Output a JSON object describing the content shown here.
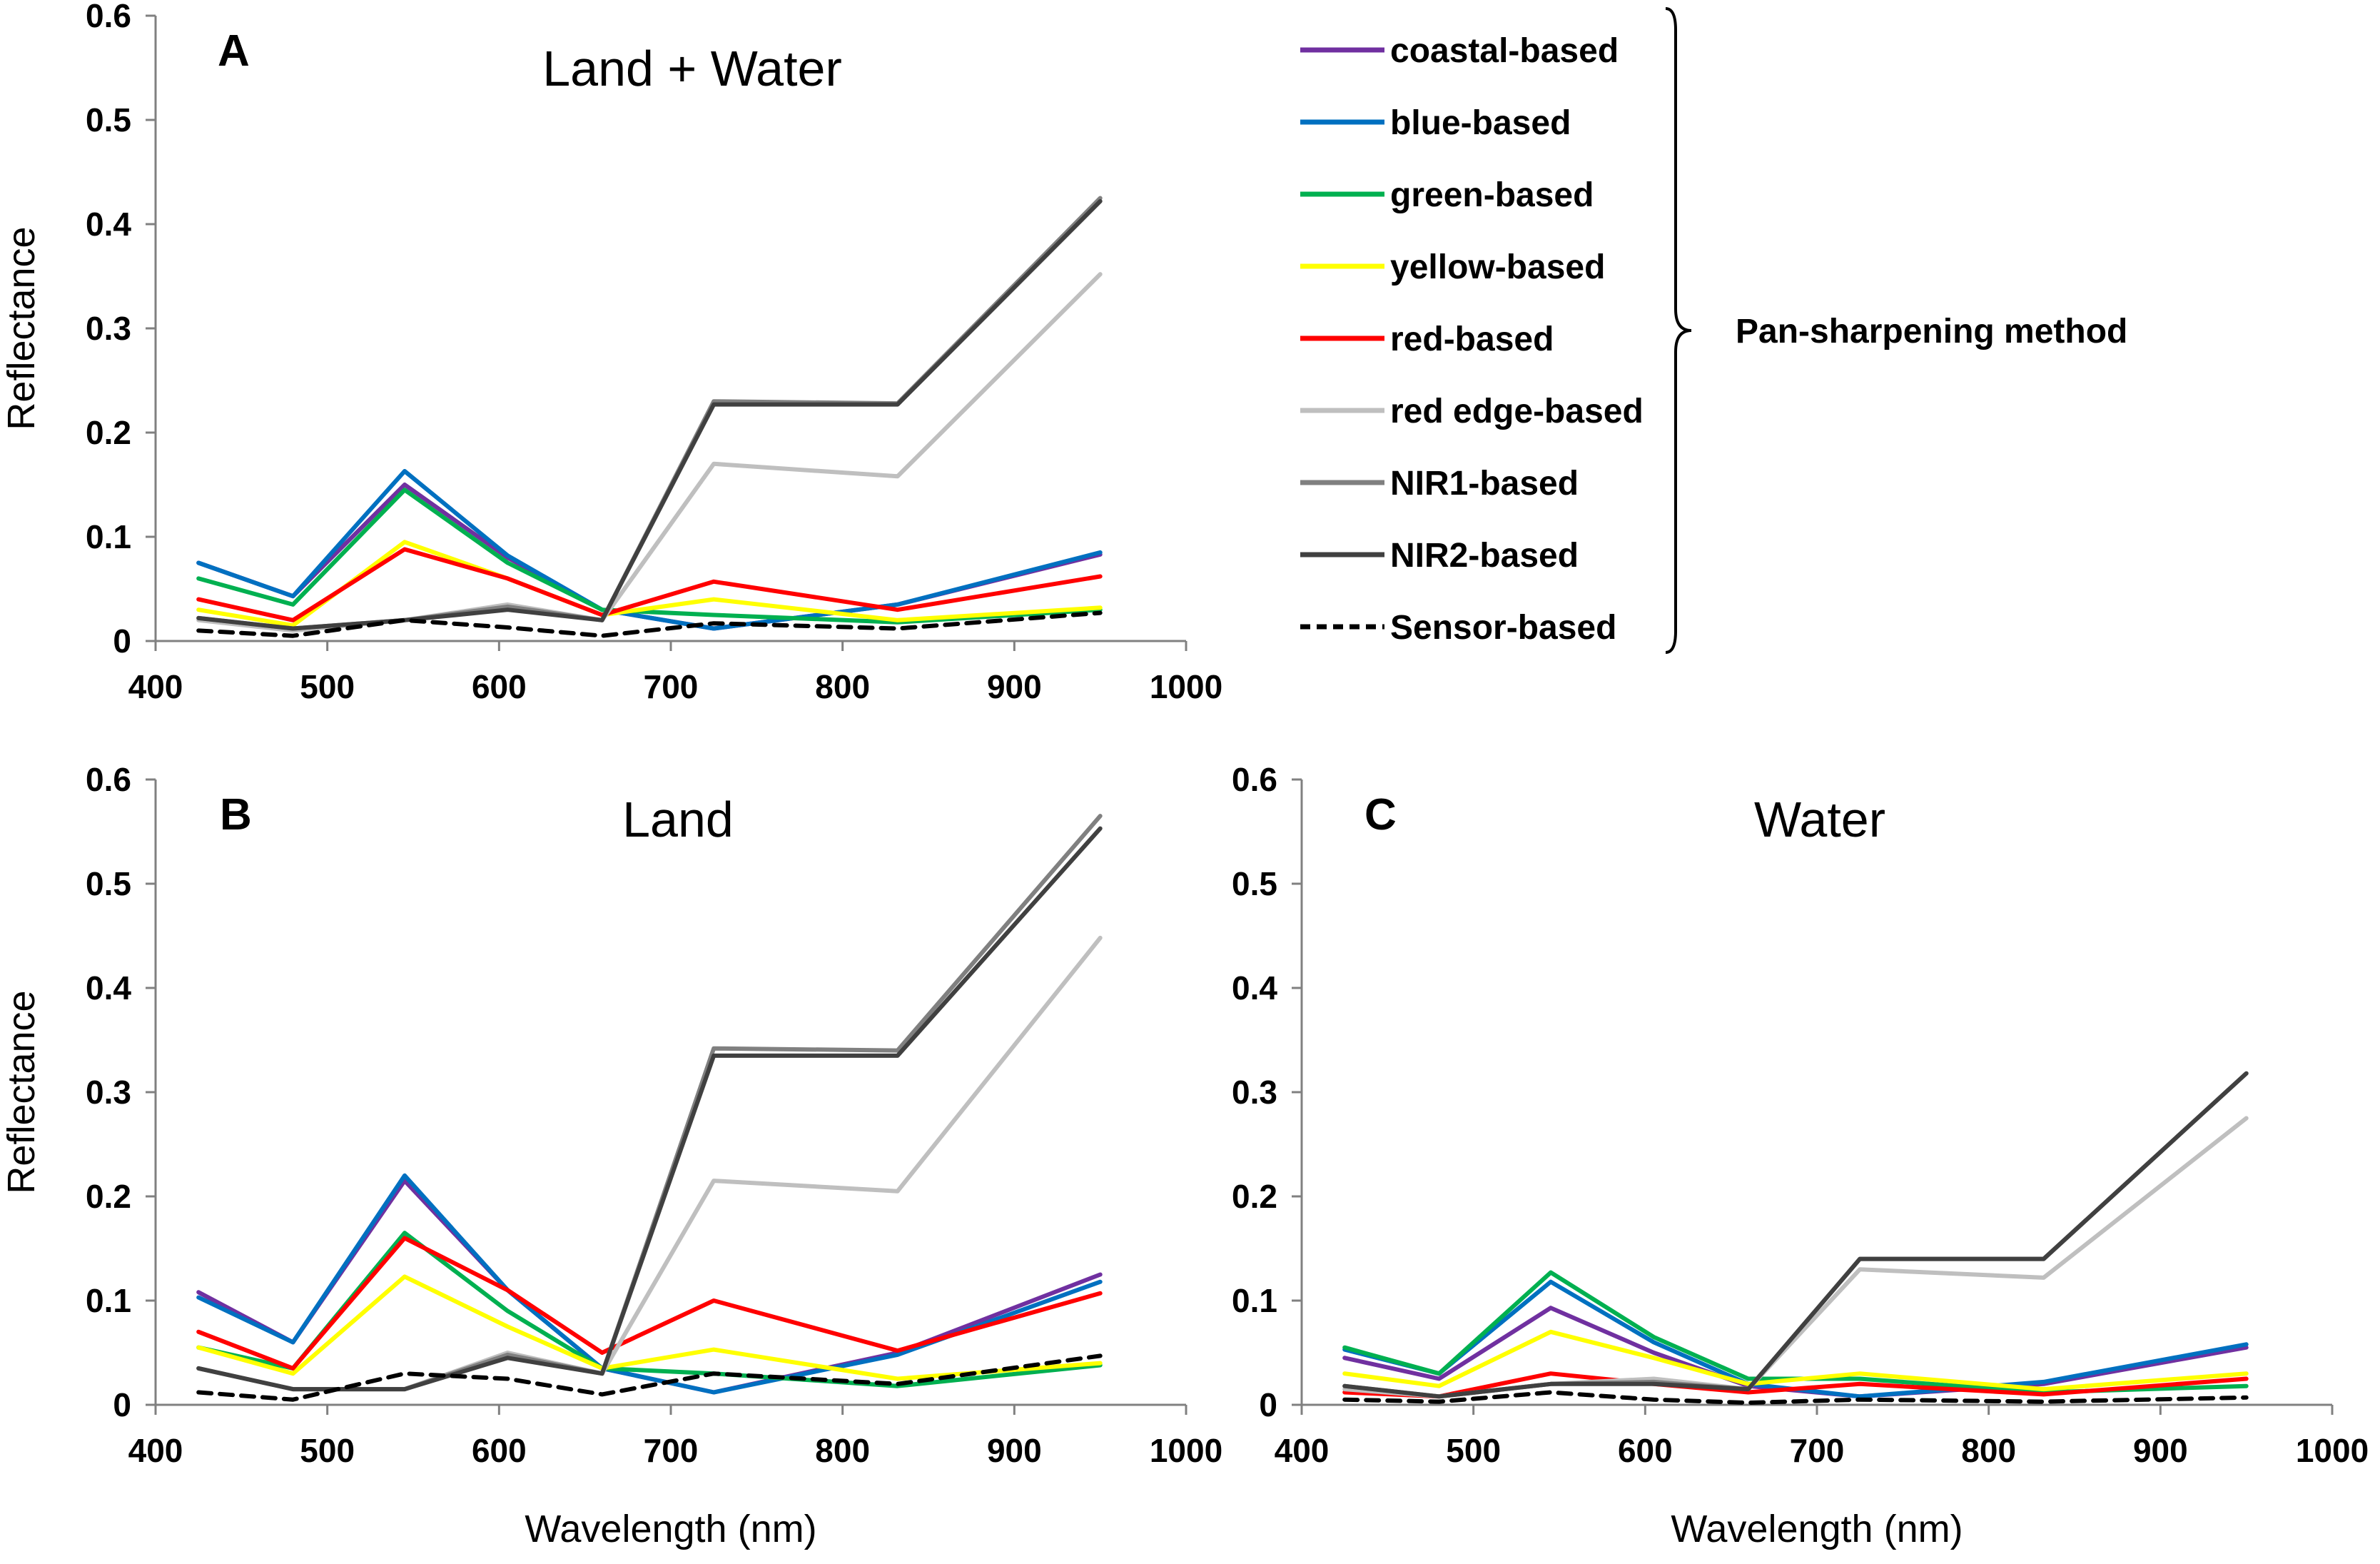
{
  "legend": {
    "group_label": "Pan-sharpening method"
  },
  "chart_data": [
    {
      "id": "A",
      "type": "line",
      "panel_letter": "A",
      "title": "Land + Water",
      "xlabel": "",
      "ylabel": "Reflectance",
      "xlim": [
        400,
        1000
      ],
      "ylim": [
        0,
        0.6
      ],
      "xticks": [
        400,
        500,
        600,
        700,
        800,
        900,
        1000
      ],
      "yticks": [
        0,
        0.1,
        0.2,
        0.3,
        0.4,
        0.5,
        0.6
      ],
      "x": [
        425,
        480,
        545,
        605,
        660,
        725,
        832,
        950
      ],
      "series": [
        {
          "name": "coastal-based",
          "color": "#7030A0",
          "dash": "",
          "values": [
            0.075,
            0.043,
            0.15,
            0.08,
            0.03,
            0.012,
            0.035,
            0.083
          ]
        },
        {
          "name": "blue-based",
          "color": "#0070C0",
          "dash": "",
          "values": [
            0.075,
            0.043,
            0.163,
            0.082,
            0.03,
            0.012,
            0.035,
            0.085
          ]
        },
        {
          "name": "green-based",
          "color": "#00B050",
          "dash": "",
          "values": [
            0.06,
            0.035,
            0.145,
            0.075,
            0.03,
            0.025,
            0.018,
            0.03
          ]
        },
        {
          "name": "yellow-based",
          "color": "#FFFF00",
          "dash": "",
          "values": [
            0.03,
            0.015,
            0.095,
            0.06,
            0.025,
            0.04,
            0.02,
            0.032
          ]
        },
        {
          "name": "red-based",
          "color": "#FF0000",
          "dash": "",
          "values": [
            0.04,
            0.02,
            0.088,
            0.06,
            0.025,
            0.057,
            0.03,
            0.062
          ]
        },
        {
          "name": "red edge-based",
          "color": "#BFBFBF",
          "dash": "",
          "values": [
            0.02,
            0.01,
            0.02,
            0.035,
            0.02,
            0.17,
            0.158,
            0.352
          ]
        },
        {
          "name": "NIR1-based",
          "color": "#808080",
          "dash": "",
          "values": [
            0.022,
            0.012,
            0.02,
            0.033,
            0.02,
            0.23,
            0.228,
            0.425
          ]
        },
        {
          "name": "NIR2-based",
          "color": "#404040",
          "dash": "",
          "values": [
            0.022,
            0.012,
            0.02,
            0.03,
            0.02,
            0.227,
            0.227,
            0.422
          ]
        },
        {
          "name": "Sensor-based",
          "color": "#000000",
          "dash": "18 12",
          "values": [
            0.01,
            0.005,
            0.02,
            0.013,
            0.005,
            0.017,
            0.012,
            0.027
          ]
        }
      ]
    },
    {
      "id": "B",
      "type": "line",
      "panel_letter": "B",
      "title": "Land",
      "xlabel": "Wavelength (nm)",
      "ylabel": "Reflectance",
      "xlim": [
        400,
        1000
      ],
      "ylim": [
        0,
        0.6
      ],
      "xticks": [
        400,
        500,
        600,
        700,
        800,
        900,
        1000
      ],
      "yticks": [
        0,
        0.1,
        0.2,
        0.3,
        0.4,
        0.5,
        0.6
      ],
      "x": [
        425,
        480,
        545,
        605,
        660,
        725,
        832,
        950
      ],
      "series": [
        {
          "name": "coastal-based",
          "color": "#7030A0",
          "dash": "",
          "values": [
            0.108,
            0.06,
            0.215,
            0.11,
            0.035,
            0.012,
            0.05,
            0.125
          ]
        },
        {
          "name": "blue-based",
          "color": "#0070C0",
          "dash": "",
          "values": [
            0.103,
            0.06,
            0.22,
            0.11,
            0.035,
            0.012,
            0.048,
            0.118
          ]
        },
        {
          "name": "green-based",
          "color": "#00B050",
          "dash": "",
          "values": [
            0.055,
            0.035,
            0.165,
            0.09,
            0.035,
            0.03,
            0.018,
            0.038
          ]
        },
        {
          "name": "yellow-based",
          "color": "#FFFF00",
          "dash": "",
          "values": [
            0.055,
            0.03,
            0.123,
            0.075,
            0.035,
            0.053,
            0.025,
            0.04
          ]
        },
        {
          "name": "red-based",
          "color": "#FF0000",
          "dash": "",
          "values": [
            0.07,
            0.035,
            0.16,
            0.11,
            0.05,
            0.1,
            0.052,
            0.107
          ]
        },
        {
          "name": "red edge-based",
          "color": "#BFBFBF",
          "dash": "",
          "values": [
            0.035,
            0.015,
            0.015,
            0.05,
            0.03,
            0.215,
            0.205,
            0.448
          ]
        },
        {
          "name": "NIR1-based",
          "color": "#808080",
          "dash": "",
          "values": [
            0.035,
            0.015,
            0.015,
            0.048,
            0.03,
            0.342,
            0.34,
            0.565
          ]
        },
        {
          "name": "NIR2-based",
          "color": "#404040",
          "dash": "",
          "values": [
            0.035,
            0.015,
            0.015,
            0.045,
            0.03,
            0.335,
            0.335,
            0.553
          ]
        },
        {
          "name": "Sensor-based",
          "color": "#000000",
          "dash": "18 12",
          "values": [
            0.012,
            0.005,
            0.03,
            0.025,
            0.01,
            0.03,
            0.02,
            0.047
          ]
        }
      ]
    },
    {
      "id": "C",
      "type": "line",
      "panel_letter": "C",
      "title": "Water",
      "xlabel": "Wavelength (nm)",
      "ylabel": "",
      "xlim": [
        400,
        1000
      ],
      "ylim": [
        0,
        0.6
      ],
      "xticks": [
        400,
        500,
        600,
        700,
        800,
        900,
        1000
      ],
      "yticks": [
        0,
        0.1,
        0.2,
        0.3,
        0.4,
        0.5,
        0.6
      ],
      "x": [
        425,
        480,
        545,
        605,
        660,
        725,
        832,
        950
      ],
      "series": [
        {
          "name": "coastal-based",
          "color": "#7030A0",
          "dash": "",
          "values": [
            0.045,
            0.025,
            0.093,
            0.05,
            0.018,
            0.008,
            0.02,
            0.055
          ]
        },
        {
          "name": "blue-based",
          "color": "#0070C0",
          "dash": "",
          "values": [
            0.053,
            0.03,
            0.118,
            0.06,
            0.02,
            0.008,
            0.022,
            0.058
          ]
        },
        {
          "name": "green-based",
          "color": "#00B050",
          "dash": "",
          "values": [
            0.055,
            0.03,
            0.127,
            0.065,
            0.025,
            0.025,
            0.012,
            0.018
          ]
        },
        {
          "name": "yellow-based",
          "color": "#FFFF00",
          "dash": "",
          "values": [
            0.03,
            0.018,
            0.07,
            0.045,
            0.02,
            0.03,
            0.015,
            0.03
          ]
        },
        {
          "name": "red-based",
          "color": "#FF0000",
          "dash": "",
          "values": [
            0.012,
            0.008,
            0.03,
            0.02,
            0.012,
            0.02,
            0.01,
            0.025
          ]
        },
        {
          "name": "red edge-based",
          "color": "#BFBFBF",
          "dash": "",
          "values": [
            0.015,
            0.008,
            0.02,
            0.025,
            0.015,
            0.13,
            0.122,
            0.275
          ]
        },
        {
          "name": "NIR1-based",
          "color": "#808080",
          "dash": "",
          "values": [
            0.018,
            0.008,
            0.02,
            0.022,
            0.015,
            0.14,
            0.14,
            0.318
          ]
        },
        {
          "name": "NIR2-based",
          "color": "#404040",
          "dash": "",
          "values": [
            0.018,
            0.008,
            0.02,
            0.02,
            0.015,
            0.14,
            0.14,
            0.318
          ]
        },
        {
          "name": "Sensor-based",
          "color": "#000000",
          "dash": "18 12",
          "values": [
            0.005,
            0.003,
            0.012,
            0.005,
            0.002,
            0.005,
            0.003,
            0.007
          ]
        }
      ]
    }
  ]
}
